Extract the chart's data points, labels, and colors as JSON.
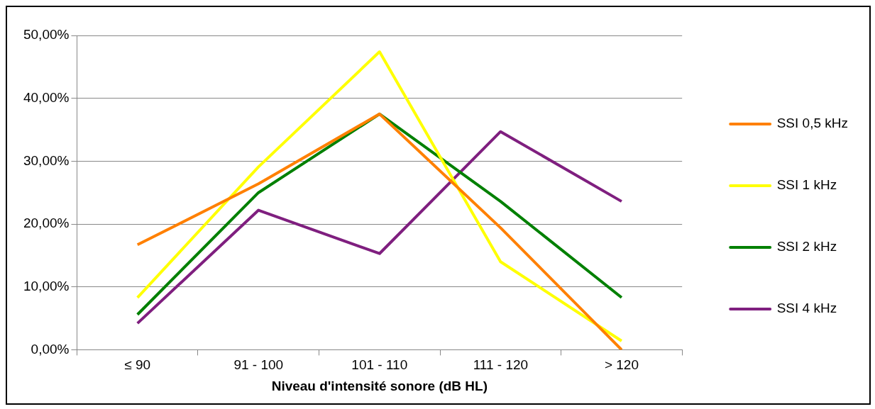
{
  "chart_data": {
    "type": "line",
    "xlabel": "Niveau d'intensité sonore (dB HL)",
    "categories": [
      "≤ 90",
      "91 - 100",
      "101 - 110",
      "111 - 120",
      "> 120"
    ],
    "series": [
      {
        "name": "SSI 0,5 kHz",
        "color": "#ff8000",
        "values": [
          16.7,
          26.4,
          37.5,
          19.4,
          0
        ]
      },
      {
        "name": "SSI 1 kHz",
        "color": "#ffff00",
        "values": [
          8.3,
          29.1,
          47.4,
          14.0,
          1.4
        ]
      },
      {
        "name": "SSI 2 kHz",
        "color": "#008000",
        "values": [
          5.6,
          25.0,
          37.5,
          23.6,
          8.3
        ]
      },
      {
        "name": "SSI 4 kHz",
        "color": "#7f1f7f",
        "values": [
          4.2,
          22.2,
          15.3,
          34.7,
          23.6
        ]
      }
    ],
    "ylim": [
      0,
      50
    ],
    "yticks": [
      {
        "value": 0,
        "label": "0,00%"
      },
      {
        "value": 10,
        "label": "10,00%"
      },
      {
        "value": 20,
        "label": "20,00%"
      },
      {
        "value": 30,
        "label": "30,00%"
      },
      {
        "value": 40,
        "label": "40,00%"
      },
      {
        "value": 50,
        "label": "50,00%"
      }
    ],
    "grid": "y",
    "legend": "right",
    "marker": "none",
    "line_style": "solid"
  }
}
